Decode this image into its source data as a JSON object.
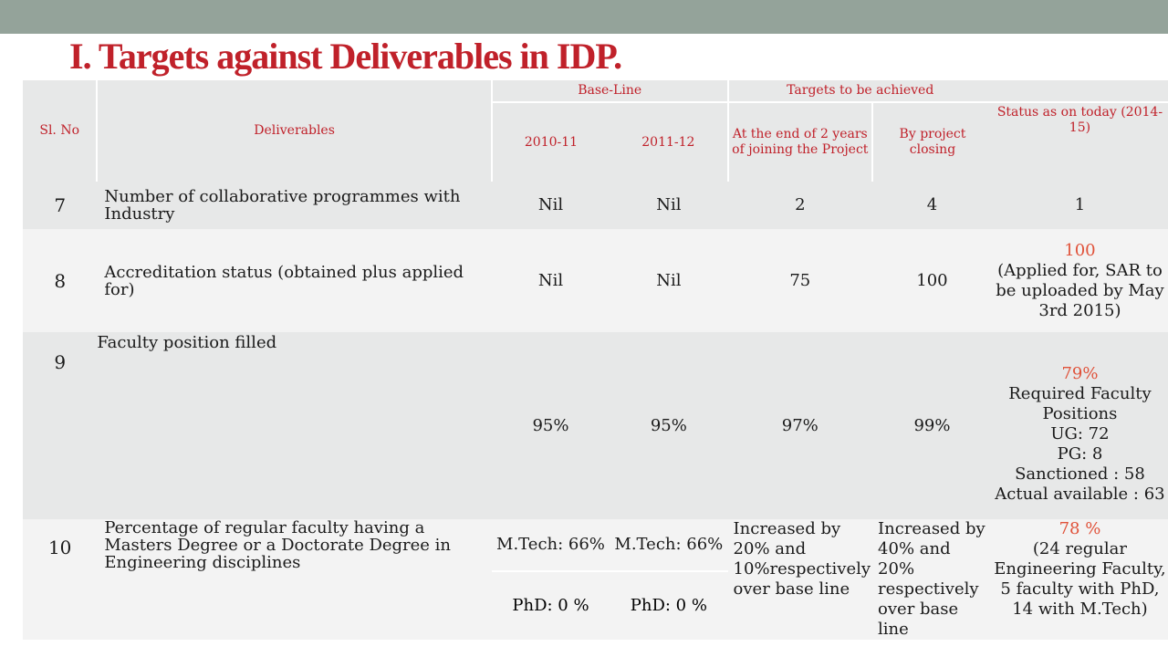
{
  "title": "I. Targets against Deliverables in IDP.",
  "headers": {
    "sl_no": "Sl. No",
    "deliverables": "Deliverables",
    "base_line": "Base-Line",
    "targets": "Targets to be achieved",
    "status": "Status as on today (2014-15)",
    "year_2010_11": "2010-11",
    "year_2011_12": "2011-12",
    "end_2_years": "At the end of 2 years of joining the Project",
    "by_closing": "By project closing"
  },
  "rows": [
    {
      "sl": "7",
      "deliverable": "Number of collaborative programmes with Industry",
      "base_2010": "Nil",
      "base_2011": "Nil",
      "target_2yr": "2",
      "target_close": "4",
      "status_value": "1"
    },
    {
      "sl": "8",
      "deliverable": "Accreditation status (obtained plus applied for)",
      "base_2010": "Nil",
      "base_2011": "Nil",
      "target_2yr": "75",
      "target_close": "100",
      "status_value": "100",
      "status_note": "(Applied for, SAR to be uploaded by May 3rd 2015)"
    },
    {
      "sl": "9",
      "deliverable": "Faculty position filled",
      "base_2010": "95%",
      "base_2011": "95%",
      "target_2yr": "97%",
      "target_close": "99%",
      "status_value": "79%",
      "status_lines": [
        "Required Faculty Positions",
        "UG: 72",
        "PG: 8",
        "Sanctioned : 58",
        "Actual available : 63"
      ]
    },
    {
      "sl": "10",
      "deliverable": "Percentage of regular faculty having a Masters Degree or a Doctorate Degree in Engineering disciplines",
      "base_2010": "M.Tech: 66%",
      "base_2011": "M.Tech: 66%",
      "base_2010_b": "PhD: 0 %",
      "base_2011_b": "PhD: 0 %",
      "target_2yr": "Increased by 20% and 10%respectively over base line",
      "target_close": "Increased by 40% and 20% respectively over base line",
      "status_value": "78 %",
      "status_note": "(24 regular Engineering Faculty, 5 faculty with PhD, 14 with M.Tech)"
    }
  ],
  "colors": {
    "title_red": "#c0212a",
    "status_red": "#e0523a",
    "topbar": "#94a39a"
  }
}
